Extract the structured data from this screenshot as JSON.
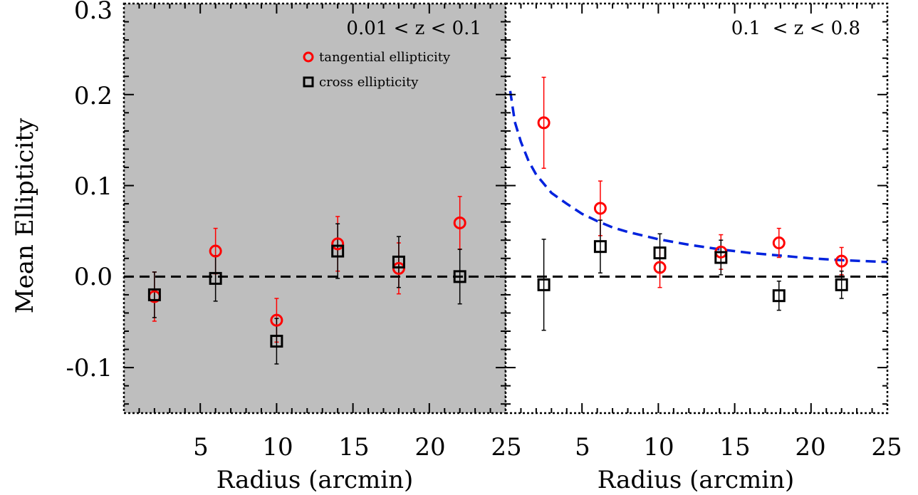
{
  "chart_data": [
    {
      "type": "scatter",
      "panel_label": "0.01 < z < 0.1",
      "background": "#bebebe",
      "xlabel": "Radius (arcmin)",
      "ylabel": "Mean Ellipticity",
      "xlim": [
        0,
        25
      ],
      "ylim": [
        -0.15,
        0.3
      ],
      "x_ticks": [
        "5",
        "10",
        "15",
        "20",
        "25"
      ],
      "y_ticks": [
        "0.3",
        "0.2",
        "0.1",
        "0.0",
        "-0.1"
      ],
      "legend": {
        "placement": "top-right",
        "entries": [
          {
            "label": "tangential ellipticity",
            "marker": "circle",
            "color": "#ff0000"
          },
          {
            "label": "cross ellipticity",
            "marker": "square",
            "color": "#000000"
          }
        ]
      },
      "series": [
        {
          "name": "tangential ellipticity",
          "marker": "circle",
          "color": "#ff0000",
          "x": [
            2,
            6,
            10,
            14,
            18,
            22
          ],
          "y": [
            -0.022,
            0.028,
            -0.048,
            0.036,
            0.009,
            0.059
          ],
          "err": [
            0.027,
            0.025,
            0.024,
            0.03,
            0.028,
            0.029
          ]
        },
        {
          "name": "cross ellipticity",
          "marker": "square",
          "color": "#000000",
          "x": [
            2,
            6,
            10,
            14,
            18,
            22
          ],
          "y": [
            -0.02,
            -0.002,
            -0.071,
            0.028,
            0.016,
            0.0
          ],
          "err": [
            0.025,
            0.025,
            0.025,
            0.03,
            0.028,
            0.03
          ]
        }
      ],
      "reference_lines": [
        {
          "y": 0.0,
          "style": "dashed",
          "color": "#000000"
        }
      ]
    },
    {
      "type": "scatter",
      "panel_label": "0.1  < z < 0.8",
      "background": "#ffffff",
      "xlabel": "Radius (arcmin)",
      "ylabel": "",
      "xlim": [
        0,
        25
      ],
      "ylim": [
        -0.15,
        0.3
      ],
      "x_ticks": [
        "5",
        "10",
        "15",
        "20",
        "25"
      ],
      "series": [
        {
          "name": "tangential ellipticity",
          "marker": "circle",
          "color": "#ff0000",
          "x": [
            2.5,
            6.2,
            10.1,
            14.1,
            17.9,
            22.0
          ],
          "y": [
            0.169,
            0.075,
            0.01,
            0.027,
            0.037,
            0.017
          ],
          "err": [
            0.05,
            0.03,
            0.022,
            0.019,
            0.016,
            0.015
          ]
        },
        {
          "name": "cross ellipticity",
          "marker": "square",
          "color": "#000000",
          "x": [
            2.5,
            6.2,
            10.1,
            14.1,
            17.9,
            22.0
          ],
          "y": [
            -0.009,
            0.033,
            0.026,
            0.021,
            -0.021,
            -0.009
          ],
          "err": [
            0.05,
            0.029,
            0.021,
            0.019,
            0.016,
            0.015
          ]
        }
      ],
      "fit_curve": {
        "style": "dashed",
        "color": "#0022dd",
        "x": [
          0.3,
          0.6,
          1,
          1.5,
          2,
          3,
          4,
          5,
          6,
          7,
          8,
          10,
          12,
          14,
          16,
          18,
          20,
          22,
          25
        ],
        "y": [
          0.204,
          0.17,
          0.148,
          0.127,
          0.112,
          0.092,
          0.08,
          0.069,
          0.061,
          0.054,
          0.049,
          0.041,
          0.035,
          0.03,
          0.026,
          0.023,
          0.02,
          0.018,
          0.016
        ]
      },
      "reference_lines": [
        {
          "y": 0.0,
          "style": "dashed",
          "color": "#000000"
        }
      ]
    }
  ]
}
